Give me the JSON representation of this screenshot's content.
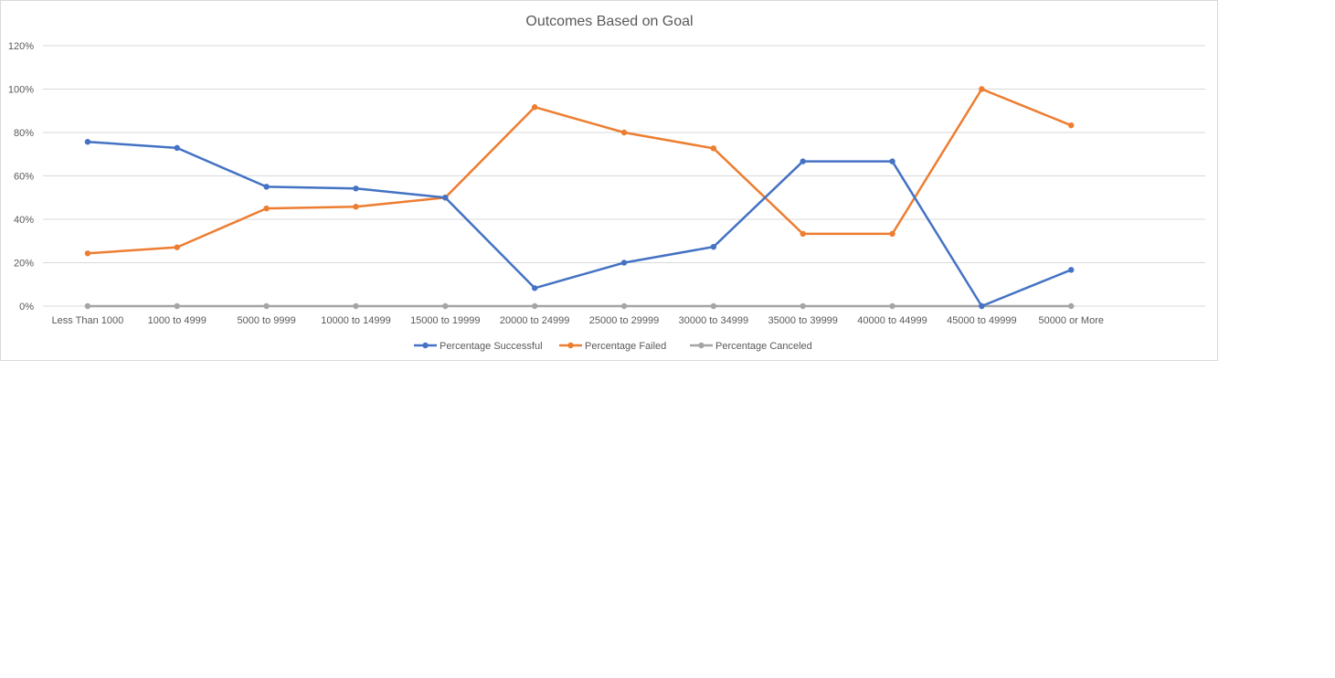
{
  "chart_data": {
    "type": "line",
    "title": "Outcomes Based on Goal",
    "xlabel": "",
    "ylabel": "",
    "categories": [
      "Less Than 1000",
      "1000 to 4999",
      "5000 to 9999",
      "10000 to 14999",
      "15000 to 19999",
      "20000 to 24999",
      "25000 to 29999",
      "30000 to 34999",
      "35000 to 39999",
      "40000 to 44999",
      "45000 to 49999",
      "50000 or More"
    ],
    "y_ticks": [
      "0%",
      "20%",
      "40%",
      "60%",
      "80%",
      "100%",
      "120%"
    ],
    "ylim": [
      0,
      1.2
    ],
    "grid": true,
    "legend_position": "bottom",
    "series": [
      {
        "name": "Percentage Successful",
        "color": "#4472c4",
        "values": [
          0.757,
          0.729,
          0.55,
          0.542,
          0.5,
          0.083,
          0.2,
          0.273,
          0.667,
          0.667,
          0.0,
          0.167
        ]
      },
      {
        "name": "Percentage Failed",
        "color": "#ed7d31",
        "values": [
          0.243,
          0.271,
          0.45,
          0.458,
          0.5,
          0.917,
          0.8,
          0.727,
          0.333,
          0.333,
          1.0,
          0.833
        ]
      },
      {
        "name": "Percentage Canceled",
        "color": "#a5a5a5",
        "values": [
          0,
          0,
          0,
          0,
          0,
          0,
          0,
          0,
          0,
          0,
          0,
          0
        ]
      }
    ]
  }
}
